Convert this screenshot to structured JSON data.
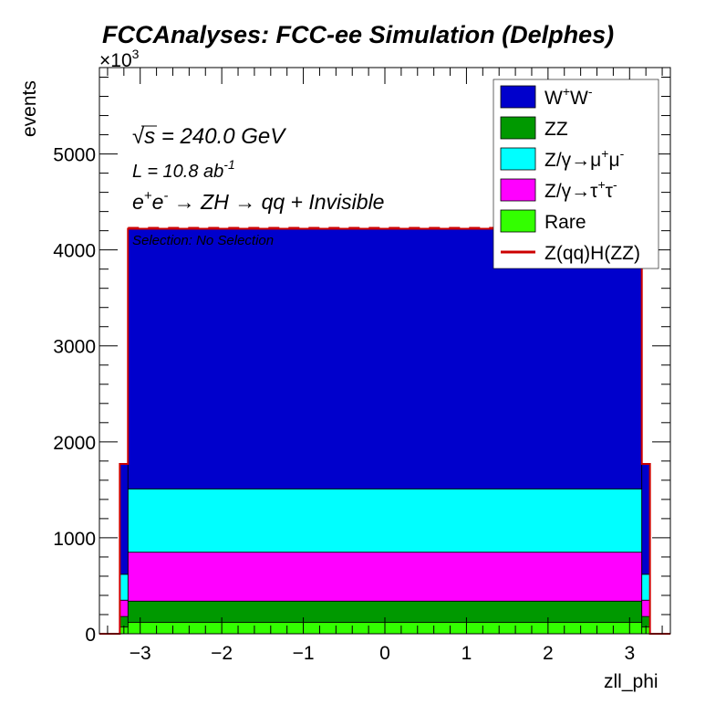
{
  "chart_data": {
    "type": "bar",
    "stacked": true,
    "histogram": true,
    "title": "FCCAnalyses: FCC-ee Simulation (Delphes)",
    "xlabel": "zll_phi",
    "ylabel": "events",
    "y_multiplier": "×10",
    "y_multiplier_exp": "3",
    "xlim": [
      -3.5,
      3.5
    ],
    "ylim": [
      0,
      5900
    ],
    "x_ticks": [
      -3,
      -2,
      -1,
      0,
      1,
      2,
      3
    ],
    "x_tick_labels": [
      "−3",
      "−2",
      "−1",
      "0",
      "1",
      "2",
      "3"
    ],
    "y_ticks": [
      0,
      1000,
      2000,
      3000,
      4000,
      5000
    ],
    "y_tick_labels": [
      "0",
      "1000",
      "2000",
      "3000",
      "4000",
      "5000"
    ],
    "bin_edges": [
      -3.5,
      -3.25,
      -3.15,
      3.15,
      3.25,
      3.5
    ],
    "series": [
      {
        "name": "Rare",
        "color": "#33ff00",
        "values": [
          0,
          70,
          120,
          70,
          0
        ]
      },
      {
        "name": "ZZ",
        "color": "#009900",
        "values": [
          0,
          110,
          220,
          110,
          0
        ]
      },
      {
        "name": "Z/γ→τ⁺τ⁻",
        "color": "#ff00ff",
        "values": [
          0,
          170,
          510,
          170,
          0
        ]
      },
      {
        "name": "Z/γ→μ⁺μ⁻",
        "color": "#00ffff",
        "values": [
          0,
          270,
          660,
          270,
          0
        ]
      },
      {
        "name": "W⁺W⁻",
        "color": "#0000cc",
        "values": [
          0,
          1150,
          2710,
          1150,
          0
        ]
      }
    ],
    "overlay": {
      "name": "Z(qq)H(ZZ)",
      "color": "#cc0000",
      "style": "dashed"
    },
    "legend_position": "top-right",
    "legend": [
      {
        "main": "W",
        "sup1": "+",
        "mid": "W",
        "sup2": "-",
        "color": "#0000cc",
        "kind": "box"
      },
      {
        "main": "ZZ",
        "sup1": "",
        "mid": "",
        "sup2": "",
        "color": "#009900",
        "kind": "box"
      },
      {
        "main": "Z/γ→μ",
        "sup1": "+",
        "mid": "μ",
        "sup2": "-",
        "color": "#00ffff",
        "kind": "box"
      },
      {
        "main": "Z/γ→τ",
        "sup1": "+",
        "mid": "τ",
        "sup2": "-",
        "color": "#ff00ff",
        "kind": "box"
      },
      {
        "main": "Rare",
        "sup1": "",
        "mid": "",
        "sup2": "",
        "color": "#33ff00",
        "kind": "box"
      },
      {
        "main": "Z(qq)H(ZZ)",
        "sup1": "",
        "mid": "",
        "sup2": "",
        "color": "#cc0000",
        "kind": "line"
      }
    ],
    "annotations": {
      "sqrt_s": "√s = 240.0 GeV",
      "sqrt_s_rest": "s = 240.0 GeV",
      "lumi": "L = 10.8 ab",
      "lumi_exp": "-1",
      "process": "e⁺e⁻ → ZH → qq + Invisible",
      "process_parts": [
        "e",
        "+",
        "e",
        "-",
        " → ZH → qq + Invisible"
      ],
      "selection": "Selection: No Selection"
    }
  }
}
